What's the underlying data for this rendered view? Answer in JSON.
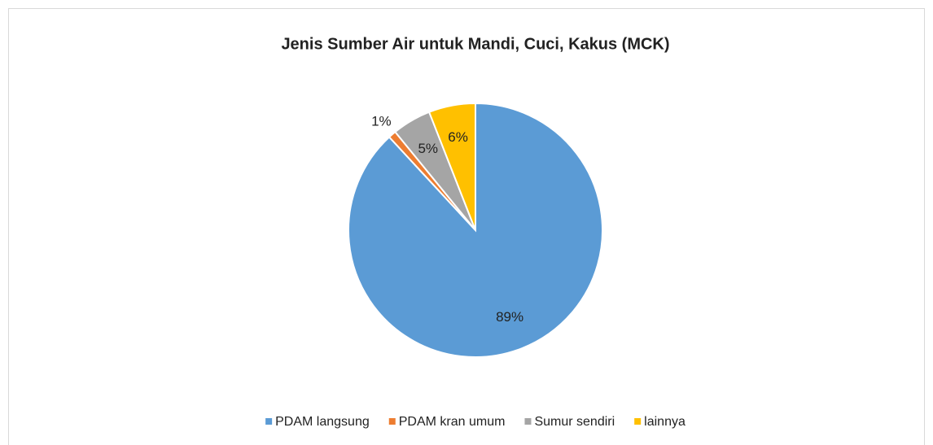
{
  "chart_data": {
    "type": "pie",
    "title": "Jenis Sumber Air untuk Mandi, Cuci, Kakus (MCK)",
    "categories": [
      "PDAM langsung",
      "PDAM kran umum",
      "Sumur sendiri",
      "lainnya"
    ],
    "values": [
      89,
      1,
      5,
      6
    ],
    "value_labels": [
      "89%",
      "1%",
      "5%",
      "6%"
    ],
    "colors": [
      "#5b9bd5",
      "#ed7d31",
      "#a5a5a5",
      "#ffc000"
    ],
    "legend": "bottom"
  }
}
